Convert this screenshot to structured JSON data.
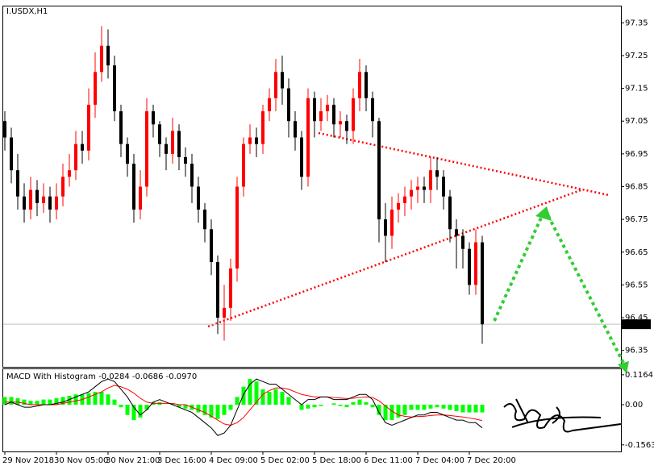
{
  "chart_data": [
    {
      "type": "candlestick",
      "title": "I.USDX,H1",
      "x_labels": [
        "29 Nov 2018",
        "30 Nov 05:00",
        "30 Nov 21:00",
        "3 Dec 16:00",
        "4 Dec 09:00",
        "5 Dec 02:00",
        "5 Dec 18:00",
        "6 Dec 11:00",
        "7 Dec 04:00",
        "7 Dec 20:00"
      ],
      "open": [
        97.05,
        97.0,
        96.9,
        96.82,
        96.78,
        96.84,
        96.8,
        96.82,
        96.78,
        96.82,
        96.88,
        96.9,
        96.98,
        96.96,
        97.1,
        97.2,
        97.28,
        97.22,
        97.08,
        96.98,
        96.92,
        96.78,
        96.85,
        97.08,
        97.04,
        96.98,
        96.95,
        97.02,
        96.94,
        96.92,
        96.85,
        96.78,
        96.72,
        96.62,
        96.45,
        96.48,
        96.6,
        96.85,
        96.98,
        97.0,
        96.98,
        97.08,
        97.12,
        97.2,
        97.15,
        97.05,
        97.0,
        96.88,
        97.12,
        97.05,
        97.08,
        97.1,
        97.04,
        97.05,
        97.02,
        97.12,
        97.2,
        97.12,
        97.05,
        96.75,
        96.7,
        96.78,
        96.8,
        96.82,
        96.84,
        96.85,
        96.84,
        96.9,
        96.88,
        96.82,
        96.72,
        96.7,
        96.66,
        96.55,
        96.68
      ],
      "high": [
        97.08,
        97.03,
        96.95,
        96.86,
        96.88,
        96.87,
        96.86,
        96.85,
        96.86,
        96.92,
        96.95,
        97.02,
        97.02,
        97.15,
        97.26,
        97.34,
        97.33,
        97.25,
        97.1,
        97.0,
        96.95,
        96.9,
        97.12,
        97.1,
        97.05,
        97.0,
        97.06,
        97.04,
        96.97,
        96.95,
        96.88,
        96.8,
        96.75,
        96.64,
        96.55,
        96.63,
        96.88,
        97.0,
        97.04,
        97.03,
        97.1,
        97.15,
        97.24,
        97.25,
        97.18,
        97.08,
        97.02,
        97.15,
        97.14,
        97.12,
        97.13,
        97.12,
        97.08,
        97.07,
        97.15,
        97.24,
        97.22,
        97.14,
        97.06,
        96.8,
        96.82,
        96.83,
        96.85,
        96.87,
        96.88,
        96.88,
        96.94,
        96.94,
        96.9,
        96.84,
        96.75,
        96.72,
        96.68,
        96.72,
        96.7
      ],
      "low": [
        96.96,
        96.86,
        96.78,
        96.74,
        96.75,
        96.76,
        96.77,
        96.74,
        96.75,
        96.79,
        96.85,
        96.87,
        96.92,
        96.93,
        97.06,
        97.17,
        97.18,
        97.05,
        96.94,
        96.88,
        96.74,
        96.75,
        96.82,
        97.0,
        96.94,
        96.9,
        96.92,
        96.9,
        96.88,
        96.8,
        96.74,
        96.68,
        96.58,
        96.4,
        96.38,
        96.44,
        96.56,
        96.82,
        96.95,
        96.94,
        96.95,
        97.05,
        97.08,
        97.1,
        97.0,
        96.96,
        96.84,
        96.85,
        97.0,
        97.02,
        97.05,
        97.0,
        97.0,
        96.98,
        96.98,
        97.08,
        97.08,
        97.0,
        96.68,
        96.62,
        96.66,
        96.74,
        96.76,
        96.78,
        96.8,
        96.8,
        96.8,
        96.84,
        96.78,
        96.68,
        96.6,
        96.6,
        96.52,
        96.52,
        96.37
      ],
      "close": [
        97.0,
        96.9,
        96.82,
        96.78,
        96.84,
        96.8,
        96.82,
        96.78,
        96.82,
        96.88,
        96.9,
        96.98,
        96.96,
        97.1,
        97.2,
        97.28,
        97.22,
        97.08,
        96.98,
        96.92,
        96.78,
        96.85,
        97.08,
        97.04,
        96.98,
        96.95,
        97.02,
        96.94,
        96.92,
        96.85,
        96.78,
        96.72,
        96.62,
        96.45,
        96.48,
        96.6,
        96.85,
        96.98,
        97.0,
        96.98,
        97.08,
        97.12,
        97.2,
        97.15,
        97.05,
        97.0,
        96.88,
        97.12,
        97.05,
        97.08,
        97.1,
        97.04,
        97.05,
        97.02,
        97.12,
        97.2,
        97.12,
        97.05,
        96.75,
        96.7,
        96.78,
        96.8,
        96.82,
        96.84,
        96.85,
        96.84,
        96.9,
        96.88,
        96.82,
        96.72,
        96.7,
        96.66,
        96.55,
        96.68,
        96.43
      ],
      "up_color": "#ff0000",
      "down_color": "#000000",
      "ylim": [
        96.3,
        97.4
      ],
      "yticks": [
        96.35,
        96.45,
        96.55,
        96.65,
        96.75,
        96.85,
        96.95,
        97.05,
        97.15,
        97.25,
        97.35
      ],
      "current_price": 96.43
    },
    {
      "type": "macd",
      "title": "MACD With Histogram -0.0284 -0.0686 -0.0970",
      "histogram": {
        "color": "#00ff00",
        "values": [
          0.03,
          0.03,
          0.025,
          0.02,
          0.015,
          0.015,
          0.02,
          0.02,
          0.025,
          0.03,
          0.035,
          0.04,
          0.04,
          0.045,
          0.05,
          0.05,
          0.04,
          0.02,
          -0.01,
          -0.04,
          -0.06,
          -0.05,
          -0.02,
          0.01,
          0.01,
          0.0,
          0.005,
          -0.01,
          -0.015,
          -0.02,
          -0.03,
          -0.04,
          -0.05,
          -0.055,
          -0.04,
          -0.02,
          0.03,
          0.07,
          0.1,
          0.09,
          0.06,
          0.05,
          0.06,
          0.05,
          0.03,
          0.0,
          -0.02,
          -0.015,
          -0.01,
          -0.005,
          0.0,
          0.005,
          -0.005,
          -0.01,
          0.01,
          0.02,
          0.01,
          -0.01,
          -0.04,
          -0.06,
          -0.06,
          -0.05,
          -0.04,
          -0.02,
          -0.02,
          -0.02,
          -0.015,
          -0.01,
          -0.015,
          -0.02,
          -0.025,
          -0.03,
          -0.03,
          -0.03,
          -0.03
        ]
      },
      "macd": {
        "color": "#000000",
        "values": [
          0.0,
          0.01,
          0.0,
          -0.01,
          -0.01,
          -0.005,
          0.0,
          0.0,
          0.005,
          0.01,
          0.02,
          0.03,
          0.04,
          0.05,
          0.07,
          0.09,
          0.1,
          0.09,
          0.06,
          0.03,
          -0.01,
          -0.04,
          -0.02,
          0.01,
          0.02,
          0.01,
          0.0,
          -0.01,
          -0.02,
          -0.03,
          -0.05,
          -0.07,
          -0.09,
          -0.12,
          -0.11,
          -0.08,
          -0.02,
          0.04,
          0.08,
          0.1,
          0.09,
          0.08,
          0.08,
          0.06,
          0.04,
          0.02,
          0.0,
          0.02,
          0.02,
          0.03,
          0.03,
          0.02,
          0.02,
          0.02,
          0.03,
          0.04,
          0.04,
          0.02,
          -0.03,
          -0.07,
          -0.08,
          -0.07,
          -0.06,
          -0.05,
          -0.04,
          -0.04,
          -0.03,
          -0.03,
          -0.04,
          -0.05,
          -0.06,
          -0.06,
          -0.07,
          -0.07,
          -0.09
        ]
      },
      "signal": {
        "color": "#ff0000",
        "values": [
          0.01,
          0.01,
          0.01,
          0.005,
          0.0,
          0.0,
          0.0,
          0.0,
          0.0,
          0.005,
          0.01,
          0.015,
          0.02,
          0.03,
          0.04,
          0.05,
          0.065,
          0.075,
          0.07,
          0.06,
          0.045,
          0.025,
          0.01,
          0.005,
          0.005,
          0.005,
          0.005,
          0.0,
          0.0,
          -0.01,
          -0.02,
          -0.03,
          -0.045,
          -0.06,
          -0.075,
          -0.08,
          -0.07,
          -0.05,
          -0.02,
          0.01,
          0.04,
          0.055,
          0.065,
          0.065,
          0.06,
          0.05,
          0.04,
          0.035,
          0.03,
          0.03,
          0.03,
          0.028,
          0.026,
          0.024,
          0.025,
          0.028,
          0.03,
          0.028,
          0.015,
          -0.005,
          -0.025,
          -0.04,
          -0.045,
          -0.048,
          -0.046,
          -0.045,
          -0.042,
          -0.04,
          -0.04,
          -0.042,
          -0.045,
          -0.048,
          -0.052,
          -0.056,
          -0.062
        ]
      },
      "ylim": [
        -0.182,
        0.138
      ],
      "yticks": [
        0.1164,
        {
          "value": 0,
          "label": "0.00"
        },
        -0.1563
      ]
    }
  ]
}
